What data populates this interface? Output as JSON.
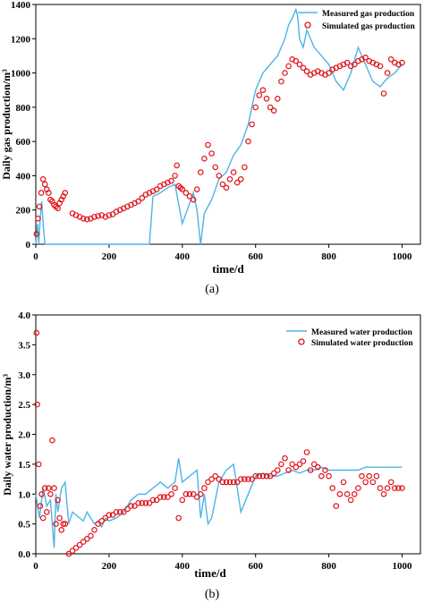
{
  "colors": {
    "measured": "#4FB3E6",
    "simulated": "#E0141B",
    "axis": "#000000",
    "background": "#ffffff"
  },
  "panel_labels": [
    "(a)",
    "(b)"
  ],
  "chart_data": [
    {
      "type": "line",
      "panel": "(a)",
      "xlabel": "time/d",
      "ylabel": "Daily gas production/m³",
      "xlim": [
        0,
        1050
      ],
      "ylim": [
        0,
        1400
      ],
      "xticks": [
        0,
        200,
        400,
        600,
        800,
        1000
      ],
      "yticks": [
        0,
        200,
        400,
        600,
        800,
        1000,
        1200,
        1400
      ],
      "grid": false,
      "legend_position": "top-right",
      "series": [
        {
          "name": "Measured gas production",
          "style": "line",
          "x": [
            0,
            5,
            8,
            12,
            16,
            20,
            25,
            30,
            35,
            40,
            45,
            50,
            60,
            70,
            80,
            90,
            100,
            110,
            120,
            140,
            160,
            180,
            200,
            220,
            240,
            260,
            280,
            300,
            310,
            320,
            340,
            360,
            380,
            400,
            420,
            430,
            440,
            450,
            460,
            480,
            500,
            520,
            540,
            560,
            580,
            600,
            620,
            640,
            660,
            680,
            690,
            700,
            710,
            715,
            720,
            730,
            740,
            760,
            780,
            800,
            820,
            840,
            860,
            880,
            900,
            920,
            940,
            960,
            980,
            1000
          ],
          "y": [
            0,
            120,
            0,
            150,
            250,
            120,
            0,
            0,
            0,
            0,
            0,
            0,
            0,
            0,
            0,
            0,
            0,
            0,
            0,
            0,
            0,
            0,
            0,
            0,
            0,
            0,
            0,
            0,
            0,
            280,
            300,
            330,
            350,
            120,
            240,
            300,
            200,
            0,
            180,
            260,
            380,
            420,
            520,
            580,
            700,
            900,
            1000,
            1050,
            1100,
            1200,
            1280,
            1320,
            1370,
            1330,
            1200,
            1150,
            1250,
            1150,
            1100,
            1050,
            950,
            900,
            1000,
            1150,
            1050,
            950,
            920,
            970,
            1000,
            1050
          ]
        },
        {
          "name": "Simulated gas production",
          "style": "scatter",
          "x": [
            2,
            6,
            10,
            15,
            20,
            25,
            30,
            35,
            40,
            45,
            50,
            55,
            60,
            65,
            70,
            75,
            80,
            100,
            110,
            120,
            130,
            140,
            150,
            160,
            170,
            180,
            190,
            200,
            210,
            220,
            230,
            240,
            250,
            260,
            270,
            280,
            290,
            300,
            310,
            320,
            330,
            340,
            350,
            360,
            370,
            380,
            385,
            390,
            395,
            400,
            410,
            420,
            430,
            440,
            450,
            460,
            470,
            480,
            490,
            500,
            510,
            520,
            530,
            540,
            550,
            560,
            570,
            580,
            590,
            600,
            610,
            620,
            630,
            640,
            650,
            660,
            670,
            680,
            690,
            700,
            710,
            720,
            730,
            740,
            750,
            760,
            770,
            780,
            790,
            800,
            810,
            820,
            830,
            840,
            850,
            860,
            870,
            880,
            890,
            900,
            910,
            920,
            930,
            940,
            950,
            960,
            970,
            980,
            990,
            1000
          ],
          "y": [
            60,
            150,
            220,
            300,
            380,
            350,
            320,
            300,
            260,
            250,
            230,
            220,
            210,
            240,
            260,
            280,
            300,
            180,
            170,
            160,
            150,
            145,
            150,
            160,
            165,
            170,
            160,
            170,
            175,
            190,
            200,
            210,
            220,
            230,
            240,
            250,
            270,
            290,
            300,
            310,
            320,
            340,
            350,
            360,
            370,
            400,
            460,
            340,
            330,
            320,
            300,
            280,
            260,
            320,
            420,
            500,
            580,
            530,
            450,
            400,
            350,
            330,
            380,
            420,
            360,
            380,
            450,
            600,
            700,
            800,
            870,
            900,
            850,
            800,
            780,
            850,
            950,
            1000,
            1040,
            1080,
            1070,
            1050,
            1030,
            1010,
            990,
            1000,
            1010,
            1000,
            990,
            1000,
            1020,
            1030,
            1040,
            1050,
            1060,
            1040,
            1050,
            1070,
            1080,
            1090,
            1070,
            1060,
            1050,
            1040,
            880,
            1000,
            1080,
            1060,
            1050,
            1060
          ]
        }
      ]
    },
    {
      "type": "line",
      "panel": "(b)",
      "xlabel": "time/d",
      "ylabel": "Daily water production/m³",
      "xlim": [
        0,
        1050
      ],
      "ylim": [
        0,
        4.0
      ],
      "xticks": [
        0,
        200,
        400,
        600,
        800,
        1000
      ],
      "yticks": [
        "0.0",
        "0.5",
        "1.0",
        "1.5",
        "2.0",
        "2.5",
        "3.0",
        "3.5",
        "4.0"
      ],
      "grid": false,
      "legend_position": "top-right",
      "series": [
        {
          "name": "Measured water production",
          "style": "line",
          "x": [
            0,
            10,
            20,
            30,
            40,
            50,
            55,
            60,
            70,
            80,
            90,
            100,
            110,
            120,
            130,
            140,
            150,
            160,
            170,
            180,
            190,
            200,
            220,
            240,
            260,
            280,
            300,
            320,
            340,
            360,
            380,
            390,
            400,
            420,
            440,
            450,
            460,
            470,
            480,
            500,
            520,
            540,
            560,
            580,
            600,
            620,
            640,
            660,
            680,
            700,
            720,
            740,
            760,
            780,
            800,
            820,
            840,
            860,
            880,
            900,
            920,
            940,
            960,
            980,
            1000
          ],
          "y": [
            1.0,
            0.6,
            1.1,
            0.8,
            0.9,
            0.1,
            1.0,
            0.7,
            1.1,
            1.2,
            0.5,
            0.7,
            0.65,
            0.6,
            0.55,
            0.7,
            0.6,
            0.5,
            0.55,
            0.45,
            0.6,
            0.55,
            0.6,
            0.7,
            0.9,
            1.0,
            1.0,
            1.1,
            1.2,
            1.1,
            1.2,
            1.6,
            1.2,
            1.3,
            1.4,
            0.6,
            1.0,
            0.5,
            0.6,
            1.2,
            1.4,
            1.5,
            0.7,
            1.0,
            1.3,
            1.35,
            1.3,
            1.3,
            1.35,
            1.4,
            1.35,
            1.4,
            1.4,
            1.45,
            1.4,
            1.4,
            1.4,
            1.4,
            1.4,
            1.45,
            1.45,
            1.45,
            1.45,
            1.45,
            1.45
          ]
        },
        {
          "name": "Simulated water production",
          "style": "scatter",
          "x": [
            2,
            4,
            8,
            12,
            16,
            20,
            25,
            30,
            35,
            40,
            45,
            50,
            55,
            60,
            65,
            70,
            75,
            80,
            90,
            100,
            110,
            120,
            130,
            140,
            150,
            160,
            170,
            180,
            190,
            200,
            210,
            220,
            230,
            240,
            250,
            260,
            270,
            280,
            290,
            300,
            310,
            320,
            330,
            340,
            350,
            360,
            370,
            380,
            390,
            400,
            410,
            420,
            430,
            440,
            450,
            460,
            470,
            480,
            490,
            500,
            510,
            520,
            530,
            540,
            550,
            560,
            570,
            580,
            590,
            600,
            610,
            620,
            630,
            640,
            650,
            660,
            670,
            680,
            690,
            700,
            710,
            720,
            730,
            740,
            750,
            760,
            770,
            780,
            790,
            800,
            810,
            820,
            830,
            840,
            850,
            860,
            870,
            880,
            890,
            900,
            910,
            920,
            930,
            940,
            950,
            960,
            970,
            980,
            990,
            1000
          ],
          "y": [
            3.7,
            2.5,
            1.5,
            0.8,
            1.0,
            0.6,
            1.1,
            0.7,
            1.1,
            1.0,
            1.9,
            1.1,
            0.5,
            0.9,
            0.6,
            0.4,
            0.5,
            0.5,
            0.0,
            0.05,
            0.1,
            0.15,
            0.2,
            0.25,
            0.3,
            0.4,
            0.5,
            0.55,
            0.6,
            0.65,
            0.65,
            0.7,
            0.7,
            0.7,
            0.75,
            0.8,
            0.8,
            0.85,
            0.85,
            0.85,
            0.85,
            0.9,
            0.9,
            0.95,
            0.95,
            0.95,
            1.0,
            1.1,
            0.6,
            0.9,
            1.0,
            1.0,
            1.0,
            0.95,
            1.0,
            1.1,
            1.2,
            1.25,
            1.3,
            1.25,
            1.2,
            1.2,
            1.2,
            1.2,
            1.2,
            1.25,
            1.25,
            1.25,
            1.25,
            1.3,
            1.3,
            1.3,
            1.3,
            1.3,
            1.35,
            1.4,
            1.5,
            1.6,
            1.4,
            1.5,
            1.45,
            1.5,
            1.55,
            1.7,
            1.4,
            1.5,
            1.45,
            1.3,
            1.4,
            1.3,
            1.1,
            0.8,
            1.0,
            1.2,
            1.0,
            0.9,
            1.0,
            1.1,
            1.3,
            1.2,
            1.3,
            1.2,
            1.3,
            1.1,
            1.0,
            1.1,
            1.2,
            1.1,
            1.1,
            1.1
          ]
        }
      ]
    }
  ]
}
